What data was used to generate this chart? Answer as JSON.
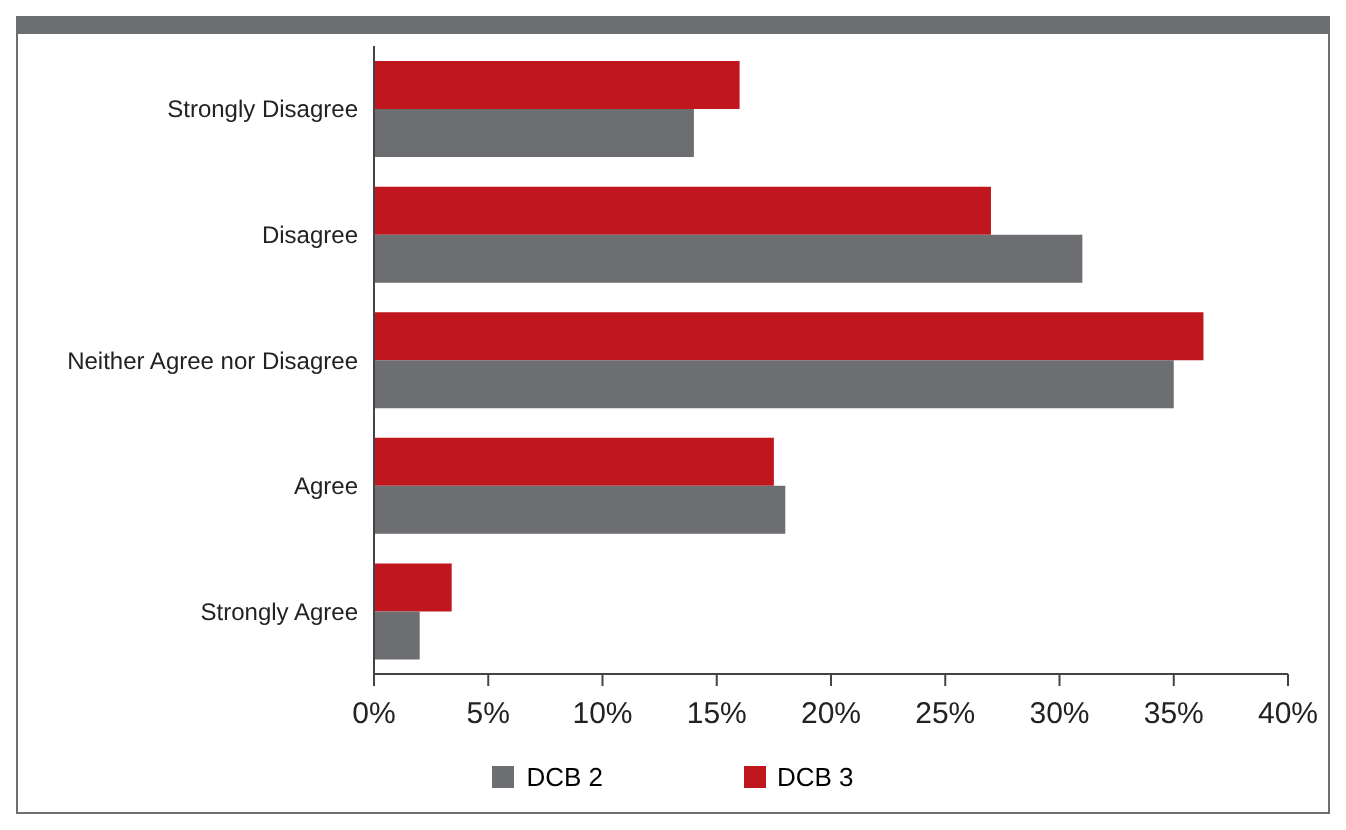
{
  "chart_data": {
    "type": "bar",
    "orientation": "horizontal",
    "categories": [
      "Strongly Disagree",
      "Disagree",
      "Neither Agree nor Disagree",
      "Agree",
      "Strongly Agree"
    ],
    "series": [
      {
        "name": "DCB 2",
        "color": "#6d6e71",
        "values": [
          14,
          31,
          35,
          18,
          2
        ]
      },
      {
        "name": "DCB 3",
        "color": "#c0161e",
        "values": [
          16,
          27,
          36.3,
          17.5,
          3.4
        ]
      }
    ],
    "xlim": [
      0,
      40
    ],
    "xticks": [
      {
        "value": 0,
        "label": "0%"
      },
      {
        "value": 5,
        "label": "5%"
      },
      {
        "value": 10,
        "label": "10%"
      },
      {
        "value": 15,
        "label": "15%"
      },
      {
        "value": 20,
        "label": "20%"
      },
      {
        "value": 25,
        "label": "25%"
      },
      {
        "value": 30,
        "label": "30%"
      },
      {
        "value": 35,
        "label": "35%"
      },
      {
        "value": 40,
        "label": "40%"
      }
    ],
    "grid": false,
    "legend": "bottom"
  }
}
